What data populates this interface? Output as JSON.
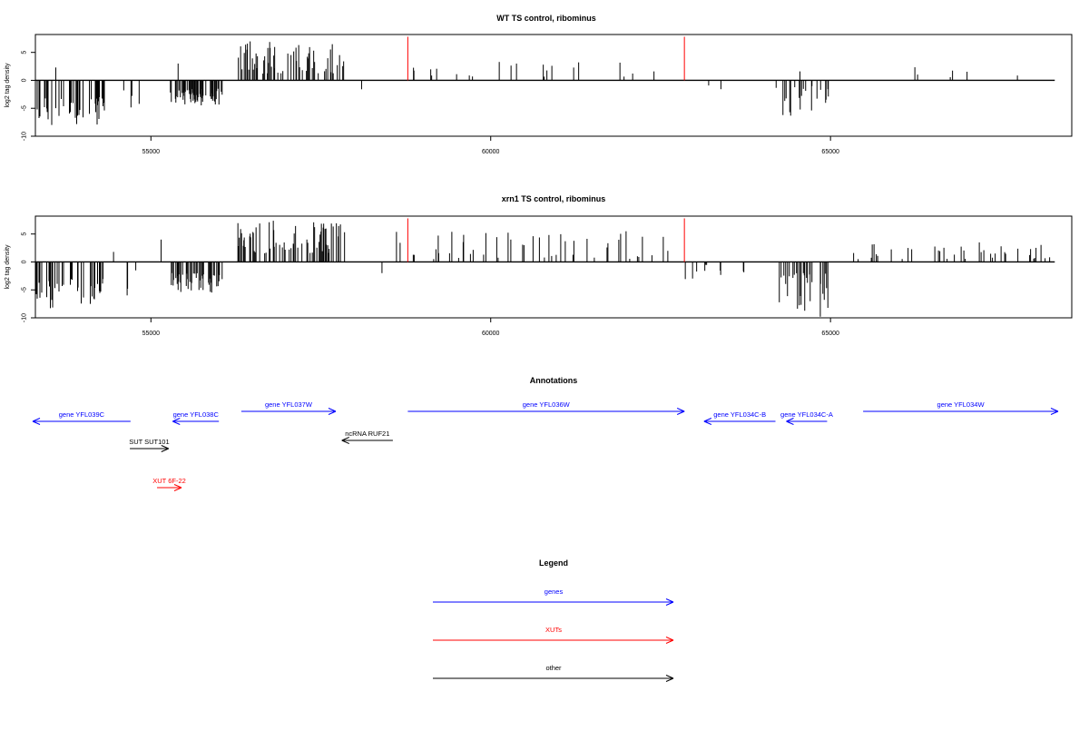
{
  "chart_data": [
    {
      "type": "bar",
      "title": "WT TS control, ribominus",
      "ylabel": "log2 tag density",
      "xlim": [
        53300,
        68550
      ],
      "ylim": [
        -10,
        8.2
      ],
      "x_ticks": [
        55000,
        60000,
        65000
      ],
      "x_tick_labels": [
        "55000",
        "60000",
        "65000"
      ],
      "y_ticks": [
        -10,
        -5,
        0,
        5
      ],
      "y_tick_labels": [
        "-10",
        "-5",
        "0",
        "5"
      ],
      "baseline": {
        "from": 53300,
        "to": 68300,
        "value": 0
      },
      "red_bars": [
        {
          "x": 58780,
          "value": 7.8
        },
        {
          "x": 62850,
          "value": 7.8
        }
      ],
      "single_bars": [
        {
          "x": 53600,
          "value": 2.3
        },
        {
          "x": 54600,
          "value": -1.8
        },
        {
          "x": 55400,
          "value": 3.0
        },
        {
          "x": 58100,
          "value": -1.6
        },
        {
          "x": 60900,
          "value": 2.6
        },
        {
          "x": 64550,
          "value": 1.6
        }
      ],
      "regions": [
        {
          "start": 53300,
          "end": 54340,
          "sign": -1,
          "min": 3.0,
          "max": 8.5,
          "density": 0.3
        },
        {
          "start": 54700,
          "end": 54840,
          "sign": -1,
          "min": 2.0,
          "max": 7.0,
          "density": 0.2
        },
        {
          "start": 55280,
          "end": 56050,
          "sign": -1,
          "min": 1.5,
          "max": 4.5,
          "density": 0.45
        },
        {
          "start": 56280,
          "end": 57850,
          "sign": 1,
          "min": 1.0,
          "max": 7.0,
          "density": 0.3
        },
        {
          "start": 58650,
          "end": 62700,
          "sign": 1,
          "min": 0.5,
          "max": 3.5,
          "density": 0.025
        },
        {
          "start": 62900,
          "end": 63450,
          "sign": -1,
          "min": 0.5,
          "max": 3.0,
          "density": 0.03
        },
        {
          "start": 64200,
          "end": 65000,
          "sign": -1,
          "min": 1.0,
          "max": 6.5,
          "density": 0.2
        },
        {
          "start": 65300,
          "end": 68300,
          "sign": 1,
          "min": 0.5,
          "max": 2.5,
          "density": 0.015
        }
      ]
    },
    {
      "type": "bar",
      "title": "xrn1 TS control, ribominus",
      "ylabel": "log2 tag density",
      "xlim": [
        53300,
        68550
      ],
      "ylim": [
        -10,
        8.2
      ],
      "x_ticks": [
        55000,
        60000,
        65000
      ],
      "x_tick_labels": [
        "55000",
        "60000",
        "65000"
      ],
      "y_ticks": [
        -10,
        -5,
        0,
        5
      ],
      "y_tick_labels": [
        "-10",
        "-5",
        "0",
        "5"
      ],
      "baseline": {
        "from": 53300,
        "to": 68300,
        "value": 0
      },
      "red_bars": [
        {
          "x": 58780,
          "value": 7.8
        },
        {
          "x": 62850,
          "value": 7.8
        }
      ],
      "single_bars": [
        {
          "x": 54450,
          "value": 1.8
        },
        {
          "x": 55150,
          "value": 4.0
        },
        {
          "x": 58400,
          "value": -2.0
        },
        {
          "x": 64850,
          "value": -9.8
        }
      ],
      "regions": [
        {
          "start": 53300,
          "end": 54340,
          "sign": -1,
          "min": 3.0,
          "max": 8.5,
          "density": 0.3
        },
        {
          "start": 54650,
          "end": 54850,
          "sign": -1,
          "min": 1.5,
          "max": 7.0,
          "density": 0.2
        },
        {
          "start": 55280,
          "end": 56050,
          "sign": -1,
          "min": 2.0,
          "max": 5.5,
          "density": 0.45
        },
        {
          "start": 56280,
          "end": 57850,
          "sign": 1,
          "min": 1.5,
          "max": 7.5,
          "density": 0.3
        },
        {
          "start": 58600,
          "end": 62800,
          "sign": 1,
          "min": 0.5,
          "max": 5.5,
          "density": 0.08
        },
        {
          "start": 62850,
          "end": 63850,
          "sign": -1,
          "min": 0.5,
          "max": 3.5,
          "density": 0.05
        },
        {
          "start": 64200,
          "end": 65000,
          "sign": -1,
          "min": 2.0,
          "max": 9.0,
          "density": 0.25
        },
        {
          "start": 65300,
          "end": 68300,
          "sign": 1,
          "min": 0.5,
          "max": 3.5,
          "density": 0.05
        }
      ]
    }
  ],
  "annotations": {
    "title": "Annotations",
    "features": [
      {
        "label": "gene YFL039C",
        "color": "#0000ff",
        "strand": "-",
        "start": 53260,
        "end": 54700,
        "row": 1
      },
      {
        "label": "gene YFL038C",
        "color": "#0000ff",
        "strand": "-",
        "start": 55320,
        "end": 56000,
        "row": 1
      },
      {
        "label": "gene YFL037W",
        "color": "#0000ff",
        "strand": "+",
        "start": 56330,
        "end": 57720,
        "row": 0
      },
      {
        "label": "gene YFL036W",
        "color": "#0000ff",
        "strand": "+",
        "start": 58780,
        "end": 62850,
        "row": 0
      },
      {
        "label": "gene YFL034C-B",
        "color": "#0000ff",
        "strand": "-",
        "start": 63140,
        "end": 64190,
        "row": 1
      },
      {
        "label": "gene YFL034C-A",
        "color": "#0000ff",
        "strand": "-",
        "start": 64350,
        "end": 64950,
        "row": 1
      },
      {
        "label": "gene YFL034W",
        "color": "#0000ff",
        "strand": "+",
        "start": 65480,
        "end": 68700,
        "row": 0
      },
      {
        "label": "SUT SUT101",
        "color": "#000000",
        "strand": "+",
        "start": 54690,
        "end": 55260,
        "row": 2
      },
      {
        "label": "ncRNA RUF21",
        "color": "#000000",
        "strand": "-",
        "start": 57810,
        "end": 58560,
        "row": 3
      },
      {
        "label": "XUT 6F-22",
        "color": "#ff0000",
        "strand": "+",
        "start": 55090,
        "end": 55450,
        "row": 4
      }
    ]
  },
  "legend": {
    "title": "Legend",
    "items": [
      {
        "label": "genes",
        "color": "#0000ff"
      },
      {
        "label": "XUTs",
        "color": "#ff0000"
      },
      {
        "label": "other",
        "color": "#000000"
      }
    ]
  }
}
